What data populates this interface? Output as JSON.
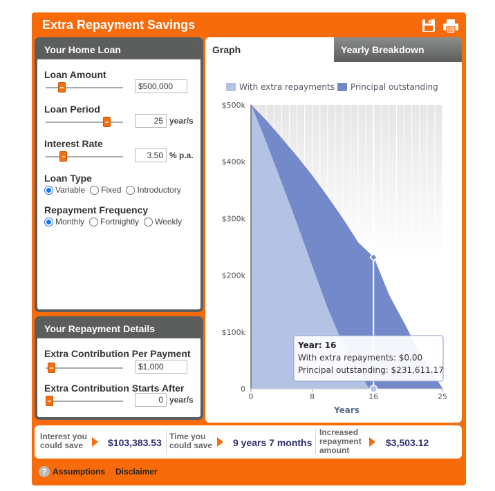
{
  "title": "Extra Repayment Savings",
  "icons": {
    "save": "save-icon",
    "print": "print-icon"
  },
  "home_loan": {
    "heading": "Your Home Loan",
    "loan_amount": {
      "label": "Loan Amount",
      "value": "$500,000",
      "slider_fraction": 0.18
    },
    "loan_period": {
      "label": "Loan Period",
      "value": "25",
      "unit": "year/s",
      "slider_fraction": 0.82
    },
    "interest_rate": {
      "label": "Interest Rate",
      "value": "3.50",
      "unit": "% p.a.",
      "slider_fraction": 0.2
    },
    "loan_type": {
      "label": "Loan Type",
      "options": [
        "Variable",
        "Fixed",
        "Introductory"
      ],
      "selected": "Variable"
    },
    "frequency": {
      "label": "Repayment Frequency",
      "options": [
        "Monthly",
        "Fortnightly",
        "Weekly"
      ],
      "selected": "Monthly"
    }
  },
  "repayment": {
    "heading": "Your Repayment Details",
    "extra_contribution": {
      "label": "Extra Contribution Per Payment",
      "value": "$1,000",
      "slider_fraction": 0.03
    },
    "starts_after": {
      "label": "Extra Contribution Starts After",
      "value": "0",
      "unit": "year/s",
      "slider_fraction": 0.0
    }
  },
  "tabs": {
    "graph": "Graph",
    "yearly": "Yearly Breakdown"
  },
  "tooltip": {
    "year_label": "Year: 16",
    "line1": "With extra repayments: $0.00",
    "line2": "Principal outstanding: $231,611.17"
  },
  "results": {
    "interest_label_1": "Interest you",
    "interest_label_2": "could save",
    "interest_value": "$103,383.53",
    "time_label_1": "Time you",
    "time_label_2": "could save",
    "time_value": "9 years 7 months",
    "increase_label_1": "Increased",
    "increase_label_2": "repayment",
    "increase_label_3": "amount",
    "increase_value": "$3,503.12"
  },
  "footer": {
    "help": "?",
    "assumptions": "Assumptions",
    "disclaimer": "Disclaimer"
  },
  "chart_data": {
    "type": "area",
    "xlabel": "Years",
    "x_ticks": [
      0,
      8,
      16,
      25
    ],
    "y_ticks": [
      "0",
      "$100k",
      "$200k",
      "$300k",
      "$400k",
      "$500k"
    ],
    "xlim": [
      0,
      25
    ],
    "ylim": [
      0,
      500000
    ],
    "legend_position": "top",
    "highlight_year": 16,
    "series": [
      {
        "name": "With extra repayments",
        "color": "#b4c3e4",
        "x": [
          0,
          2,
          4,
          6,
          8,
          10,
          12,
          14,
          15.4
        ],
        "y": [
          500000,
          433000,
          362000,
          290000,
          215000,
          141000,
          78000,
          30000,
          0
        ]
      },
      {
        "name": "Principal outstanding",
        "color": "#7489c9",
        "x": [
          0,
          2,
          4,
          6,
          8,
          10,
          12,
          14,
          16,
          18,
          20,
          22,
          24,
          25
        ],
        "y": [
          500000,
          472000,
          441000,
          409000,
          375000,
          338000,
          299000,
          257000,
          231611,
          165000,
          115000,
          63000,
          21000,
          0
        ]
      }
    ]
  }
}
